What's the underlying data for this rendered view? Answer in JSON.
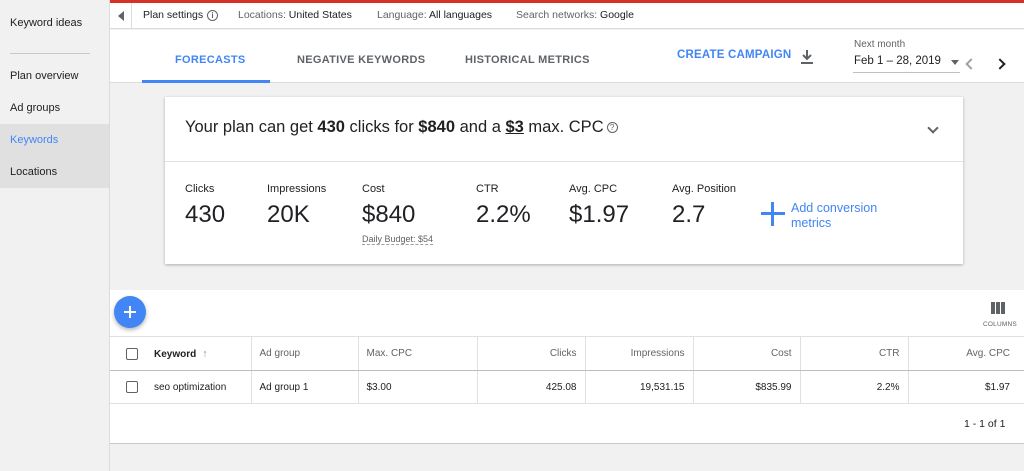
{
  "sidebar": {
    "items": [
      {
        "label": "Keyword ideas"
      },
      {
        "label": "Plan overview"
      },
      {
        "label": "Ad groups"
      },
      {
        "label": "Keywords"
      },
      {
        "label": "Locations"
      }
    ]
  },
  "settings_bar": {
    "title": "Plan settings",
    "locations_key": "Locations:",
    "locations_val": "United States",
    "language_key": "Language:",
    "language_val": "All languages",
    "networks_key": "Search networks:",
    "networks_val": "Google"
  },
  "tabs": [
    {
      "label": "FORECASTS",
      "active": true
    },
    {
      "label": "NEGATIVE KEYWORDS",
      "active": false
    },
    {
      "label": "HISTORICAL METRICS",
      "active": false
    }
  ],
  "header": {
    "create_campaign": "CREATE CAMPAIGN",
    "download_icon": "download-icon",
    "period_label": "Next month",
    "period_value": "Feb 1 – 28, 2019"
  },
  "forecast": {
    "pre": "Your plan can get ",
    "clicks": "430",
    "mid1": " clicks for ",
    "cost": "$840",
    "mid2": " and a ",
    "max_cpc": "$3",
    "post": " max. CPC",
    "metrics": [
      {
        "label": "Clicks",
        "value": "430"
      },
      {
        "label": "Impressions",
        "value": "20K"
      },
      {
        "label": "Cost",
        "value": "$840"
      },
      {
        "label": "CTR",
        "value": "2.2%"
      },
      {
        "label": "Avg. CPC",
        "value": "$1.97"
      },
      {
        "label": "Avg. Position",
        "value": "2.7"
      }
    ],
    "daily_budget": "Daily Budget: $54",
    "add_conversion": "Add conversion metrics"
  },
  "table": {
    "columns_label": "COLUMNS",
    "headers": [
      "Keyword",
      "Ad group",
      "Max. CPC",
      "Clicks",
      "Impressions",
      "Cost",
      "CTR",
      "Avg. CPC"
    ],
    "rows": [
      [
        "seo optimization",
        "Ad group 1",
        "$3.00",
        "425.08",
        "19,531.15",
        "$835.99",
        "2.2%",
        "$1.97"
      ]
    ],
    "pagination": "1 - 1 of 1"
  },
  "colors": {
    "accent": "#4285f4",
    "topline": "#d93025"
  }
}
